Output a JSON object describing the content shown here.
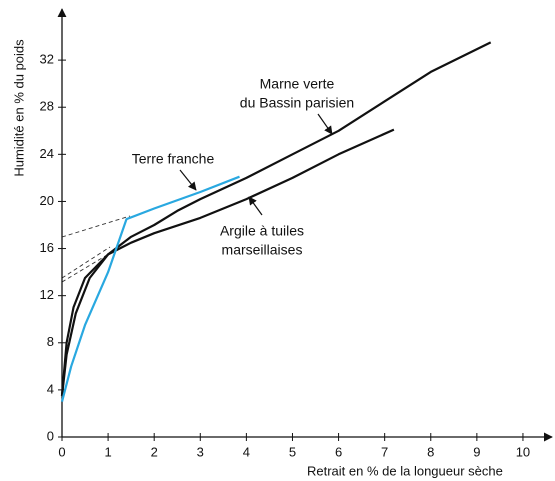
{
  "chart_data": {
    "type": "line",
    "x_label": "Retrait en % de la longueur sèche",
    "y_label": "Humidité en % du poids",
    "xlim": [
      0,
      10.5
    ],
    "ylim": [
      0,
      36
    ],
    "xticks": [
      0,
      1,
      2,
      3,
      4,
      5,
      6,
      7,
      8,
      9,
      10
    ],
    "yticks": [
      0,
      4,
      8,
      12,
      16,
      20,
      24,
      28,
      32
    ],
    "series": [
      {
        "label": [
          "Marne verte",
          "du Bassin parisien"
        ],
        "color": "#111111",
        "x": [
          0,
          0.1,
          0.25,
          0.5,
          1,
          1.5,
          2,
          2.5,
          3,
          4,
          5,
          6,
          7,
          8,
          9.3
        ],
        "values": [
          3.5,
          8,
          11,
          13.5,
          15.5,
          17,
          18,
          19.2,
          20.2,
          22,
          24,
          26,
          28.5,
          31,
          33.5
        ]
      },
      {
        "label": [
          "Argile à tuiles",
          "marseillaises"
        ],
        "color": "#111111",
        "x": [
          0,
          0.1,
          0.3,
          0.6,
          1,
          1.5,
          2,
          3,
          4,
          5,
          6,
          7.2
        ],
        "values": [
          3.5,
          7,
          10.5,
          13.5,
          15.5,
          16.5,
          17.3,
          18.6,
          20.2,
          22,
          24,
          26.1
        ]
      },
      {
        "label": [
          "Terre franche"
        ],
        "color": "#29a8e0",
        "x": [
          0,
          0.2,
          0.5,
          1,
          1.4,
          2,
          3,
          3.85
        ],
        "values": [
          3,
          6,
          9.5,
          14,
          18.5,
          19.4,
          20.8,
          22.1
        ]
      }
    ]
  }
}
